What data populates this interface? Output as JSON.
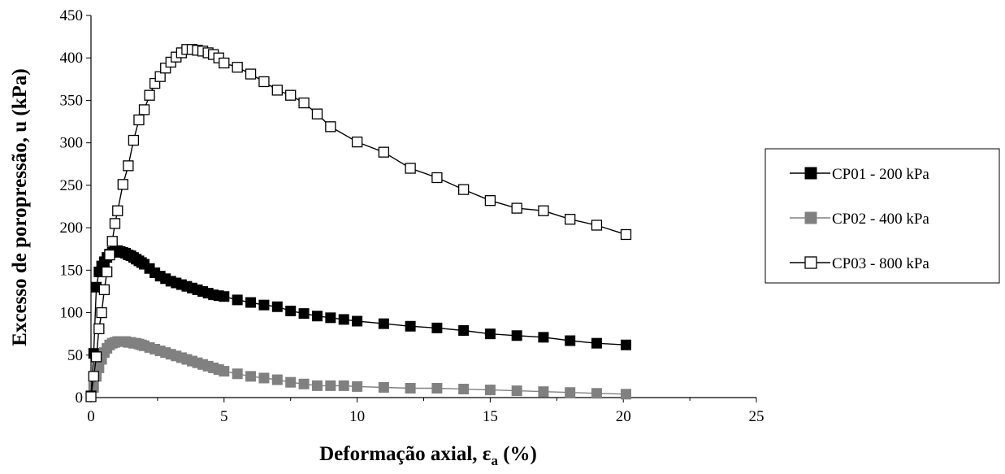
{
  "chart_data": {
    "type": "line",
    "xlabel": "Deformação axial, ε",
    "xlabel_sub": "a",
    "xlabel_unit": " (%)",
    "ylabel": "Excesso de poropressão, u (kPa)",
    "xlim": [
      0,
      25
    ],
    "ylim": [
      0,
      450
    ],
    "xticks": [
      0,
      5,
      10,
      15,
      20,
      25
    ],
    "yticks": [
      0,
      50,
      100,
      150,
      200,
      250,
      300,
      350,
      400,
      450
    ],
    "grid": false,
    "legend_position": "right",
    "series": [
      {
        "name": "CP01 - 200 kPa",
        "marker": "filled-square",
        "color": "#000000",
        "x": [
          0.0,
          0.1,
          0.2,
          0.3,
          0.4,
          0.5,
          0.6,
          0.7,
          0.8,
          0.9,
          1.0,
          1.1,
          1.2,
          1.3,
          1.4,
          1.5,
          1.6,
          1.7,
          1.8,
          1.9,
          2.0,
          2.2,
          2.4,
          2.6,
          2.8,
          3.0,
          3.2,
          3.4,
          3.6,
          3.8,
          4.0,
          4.2,
          4.4,
          4.6,
          4.8,
          5.0,
          5.5,
          6.0,
          6.5,
          7.0,
          7.5,
          8.0,
          8.5,
          9.0,
          9.5,
          10.0,
          11.0,
          12.0,
          13.0,
          14.0,
          15.0,
          16.0,
          17.0,
          18.0,
          19.0,
          20.1
        ],
        "y": [
          2,
          52,
          130,
          148,
          155,
          160,
          165,
          169,
          171,
          173,
          173,
          172,
          171,
          170,
          168,
          167,
          165,
          163,
          161,
          159,
          157,
          152,
          147,
          143,
          140,
          137,
          135,
          133,
          131,
          129,
          127,
          125,
          123,
          121,
          120,
          119,
          115,
          112,
          109,
          107,
          102,
          99,
          96,
          94,
          92,
          90,
          87,
          84,
          82,
          79,
          75,
          73,
          71,
          67,
          64,
          62
        ]
      },
      {
        "name": "CP02 - 400 kPa",
        "marker": "gray-square",
        "color": "#808080",
        "x": [
          0.0,
          0.1,
          0.2,
          0.3,
          0.4,
          0.5,
          0.6,
          0.7,
          0.8,
          0.9,
          1.0,
          1.1,
          1.2,
          1.3,
          1.4,
          1.5,
          1.6,
          1.7,
          1.8,
          1.9,
          2.0,
          2.2,
          2.4,
          2.6,
          2.8,
          3.0,
          3.2,
          3.4,
          3.6,
          3.8,
          4.0,
          4.2,
          4.4,
          4.6,
          4.8,
          5.0,
          5.5,
          6.0,
          6.5,
          7.0,
          7.5,
          8.0,
          8.5,
          9.0,
          9.5,
          10.0,
          11.0,
          12.0,
          13.0,
          14.0,
          15.0,
          16.0,
          17.0,
          18.0,
          19.0,
          20.1
        ],
        "y": [
          1,
          12,
          25,
          35,
          45,
          53,
          58,
          62,
          64,
          65,
          66,
          66,
          66,
          66,
          65,
          65,
          64,
          64,
          63,
          62,
          61,
          59,
          57,
          55,
          53,
          51,
          49,
          47,
          45,
          43,
          41,
          39,
          37,
          35,
          33,
          31,
          28,
          25,
          23,
          21,
          18,
          16,
          14,
          14,
          14,
          13,
          12,
          11,
          11,
          10,
          9,
          8,
          7,
          6,
          5,
          4
        ]
      },
      {
        "name": "CP03 - 800 kPa",
        "marker": "open-square",
        "color": "#000000",
        "x": [
          0.0,
          0.1,
          0.2,
          0.3,
          0.4,
          0.5,
          0.6,
          0.7,
          0.8,
          0.9,
          1.0,
          1.2,
          1.4,
          1.6,
          1.8,
          2.0,
          2.2,
          2.4,
          2.6,
          2.8,
          3.0,
          3.2,
          3.4,
          3.6,
          3.8,
          4.0,
          4.2,
          4.4,
          4.6,
          4.8,
          5.0,
          5.5,
          6.0,
          6.5,
          7.0,
          7.5,
          8.0,
          8.5,
          9.0,
          10.0,
          11.0,
          12.0,
          13.0,
          14.0,
          15.0,
          16.0,
          17.0,
          18.0,
          19.0,
          20.1
        ],
        "y": [
          1,
          25,
          48,
          81,
          100,
          127,
          148,
          168,
          184,
          205,
          220,
          251,
          273,
          303,
          327,
          339,
          356,
          370,
          378,
          388,
          395,
          401,
          406,
          410,
          410,
          409,
          408,
          406,
          404,
          400,
          394,
          389,
          381,
          372,
          362,
          356,
          347,
          334,
          319,
          301,
          289,
          270,
          259,
          245,
          232,
          223,
          220,
          210,
          203,
          192
        ]
      }
    ]
  }
}
